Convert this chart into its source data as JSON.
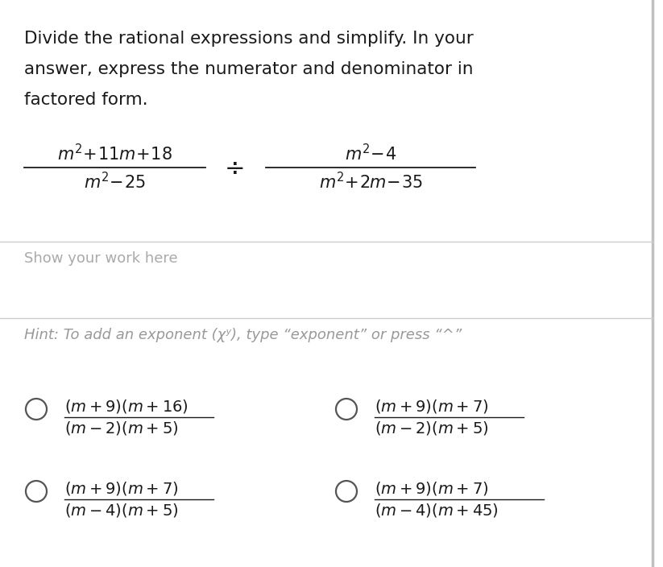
{
  "bg_color": "#ffffff",
  "question_lines": [
    "Divide the rational expressions and simplify. In your",
    "answer, express the numerator and denominator in",
    "factored form."
  ],
  "show_work_text": "Show your work here",
  "hint_text": "Hint: To add an exponent (χʸ), type “exponent” or press “^”",
  "question_text_color": "#1a1a1a",
  "gray_text_color": "#aaaaaa",
  "hint_text_color": "#999999",
  "choice_text_color": "#1a1a1a",
  "radio_color": "#555555",
  "line_color": "#cccccc",
  "right_border_color": "#c0c0c0",
  "choices": [
    {
      "num": "(m+9)(m+16)",
      "den": "(m-2)(m+5)"
    },
    {
      "num": "(m+9)(m+7)",
      "den": "(m-2)(m+5)"
    },
    {
      "num": "(m+9)(m+7)",
      "den": "(m-4)(m+5)"
    },
    {
      "num": "(m+9)(m+7)",
      "den": "(m-4)(m+45)"
    }
  ]
}
